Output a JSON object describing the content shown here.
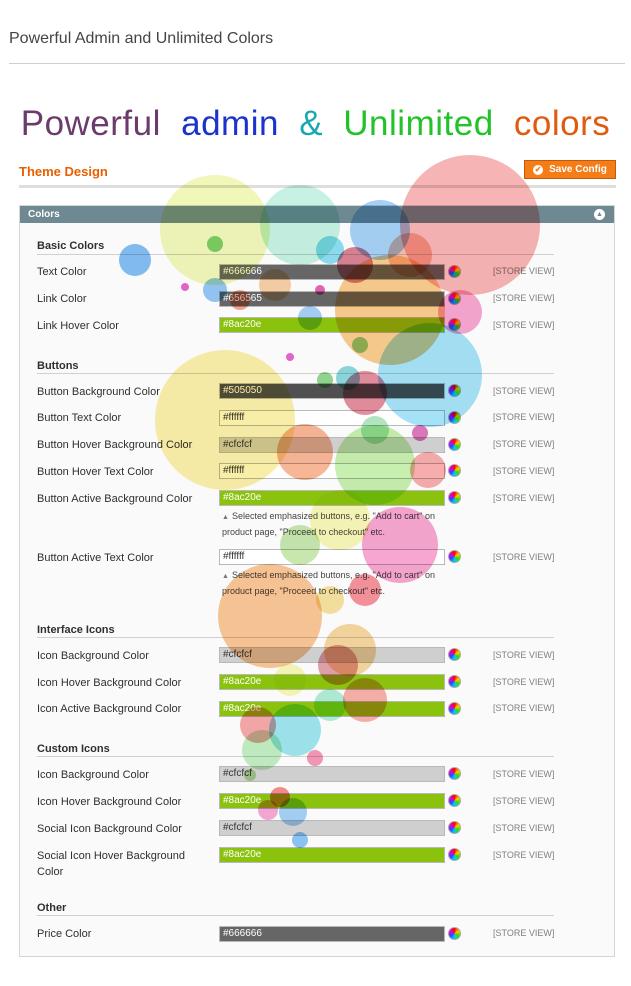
{
  "page_heading": "Powerful Admin and Unlimited Colors",
  "banner": {
    "words": [
      {
        "text": "Powerful",
        "color": "#6b3b6b"
      },
      {
        "text": "admin",
        "color": "#1b33cc"
      },
      {
        "text": "&",
        "color": "#1aa8b0"
      },
      {
        "text": "Unlimited",
        "color": "#22c22a"
      },
      {
        "text": "colors",
        "color": "#e05a10"
      }
    ]
  },
  "section_title": "Theme Design",
  "save_button": "Save Config",
  "fieldset_title": "Colors",
  "scope_label": "[STORE VIEW]",
  "groups": {
    "basic": "Basic Colors",
    "buttons": "Buttons",
    "interface": "Interface Icons",
    "custom": "Custom Icons",
    "other": "Other"
  },
  "fields": {
    "text_color": {
      "label": "Text Color",
      "value": "#666666",
      "bg": "#666666"
    },
    "link_color": {
      "label": "Link Color",
      "value": "#656565",
      "bg": "#656565"
    },
    "link_hover_color": {
      "label": "Link Hover Color",
      "value": "#8ac20e",
      "bg": "#8ac20e"
    },
    "button_bg": {
      "label": "Button Background Color",
      "value": "#505050",
      "bg": "#505050"
    },
    "button_text": {
      "label": "Button Text Color",
      "value": "#ffffff",
      "bg": "#ffffff"
    },
    "button_hover_bg": {
      "label": "Button Hover Background Color",
      "value": "#cfcfcf",
      "bg": "#cfcfcf"
    },
    "button_hover_text": {
      "label": "Button Hover Text Color",
      "value": "#ffffff",
      "bg": "#ffffff"
    },
    "button_active_bg": {
      "label": "Button Active Background Color",
      "value": "#8ac20e",
      "bg": "#8ac20e"
    },
    "button_active_text": {
      "label": "Button Active Text Color",
      "value": "#ffffff",
      "bg": "#ffffff"
    },
    "icon_bg": {
      "label": "Icon Background Color",
      "value": "#cfcfcf",
      "bg": "#cfcfcf"
    },
    "icon_hover_bg": {
      "label": "Icon Hover Background Color",
      "value": "#8ac20e",
      "bg": "#8ac20e"
    },
    "icon_active_bg": {
      "label": "Icon Active Background Color",
      "value": "#8ac20e",
      "bg": "#8ac20e"
    },
    "custom_icon_bg": {
      "label": "Icon Background Color",
      "value": "#cfcfcf",
      "bg": "#cfcfcf"
    },
    "custom_icon_hover_bg": {
      "label": "Icon Hover Background Color",
      "value": "#8ac20e",
      "bg": "#8ac20e"
    },
    "social_icon_bg": {
      "label": "Social Icon Background Color",
      "value": "#cfcfcf",
      "bg": "#cfcfcf"
    },
    "social_icon_hover_bg": {
      "label": "Social Icon Hover Background Color",
      "value": "#8ac20e",
      "bg": "#8ac20e"
    },
    "price_color": {
      "label": "Price Color",
      "value": "#666666",
      "bg": "#666666"
    }
  },
  "notes": {
    "active_bg": "Selected emphasized buttons, e.g. \"Add to cart\" on product page, \"Proceed to checkout\" etc.",
    "active_text": "Selected emphasized buttons, e.g. \"Add to cart\" on product page, \"Proceed to checkout\" etc."
  }
}
